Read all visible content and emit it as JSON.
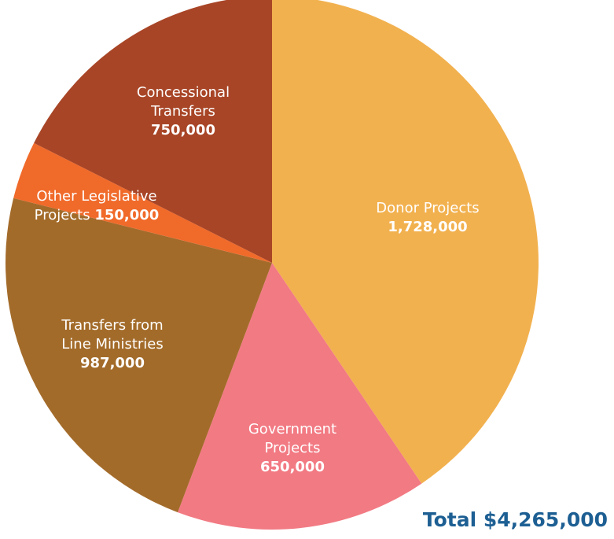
{
  "chart_data": {
    "type": "pie",
    "slices": [
      {
        "name_lines": [
          "Donor Projects"
        ],
        "value": 1728000,
        "value_label": "1,728,000",
        "color": "#f2b14f"
      },
      {
        "name_lines": [
          "Government",
          "Projects"
        ],
        "value": 650000,
        "value_label": "650,000",
        "color": "#f27a83"
      },
      {
        "name_lines": [
          "Transfers from",
          "Line Ministries"
        ],
        "value": 987000,
        "value_label": "987,000",
        "color": "#a36b2a"
      },
      {
        "name_lines": [
          "Other Legislative",
          "Projects"
        ],
        "value": 150000,
        "value_label": "150,000",
        "color": "#f06a2a"
      },
      {
        "name_lines": [
          "Concessional",
          "Transfers"
        ],
        "value": 750000,
        "value_label": "750,000",
        "color": "#a84526"
      }
    ],
    "total_label": "Total $4,265,000"
  }
}
